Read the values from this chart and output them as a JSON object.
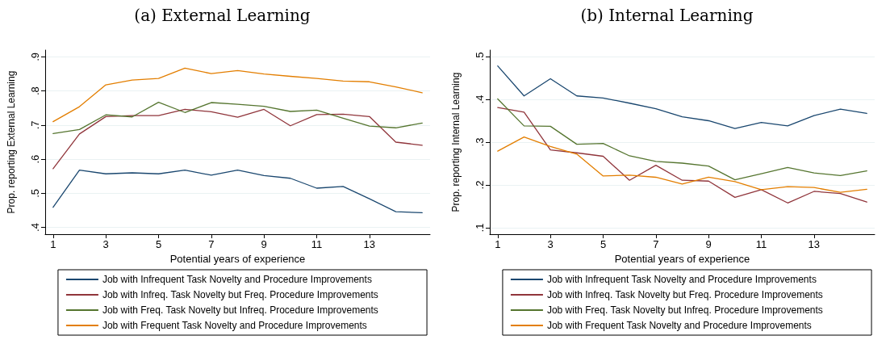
{
  "chart_data": [
    {
      "type": "line",
      "title": "(a) External Learning",
      "xlabel": "Potential years of experience",
      "ylabel": "Prop. reporting External Learning",
      "x": [
        1,
        2,
        3,
        4,
        5,
        6,
        7,
        8,
        9,
        10,
        11,
        12,
        13,
        14,
        15
      ],
      "series": [
        {
          "name": "Job with Infrequent Task Novelty and Procedure Improvements",
          "color": "#1a476f",
          "values": [
            0.459,
            0.568,
            0.557,
            0.56,
            0.557,
            0.568,
            0.553,
            0.568,
            0.552,
            0.544,
            0.515,
            0.52,
            0.484,
            0.446,
            0.443
          ]
        },
        {
          "name": "Job with Infreq. Task Novelty but Freq. Procedure Improvements",
          "color": "#90353b",
          "values": [
            0.572,
            0.674,
            0.725,
            0.728,
            0.728,
            0.746,
            0.739,
            0.723,
            0.746,
            0.698,
            0.731,
            0.732,
            0.725,
            0.65,
            0.641
          ]
        },
        {
          "name": "Job with Freq. Task Novelty but Infreq. Procedure Improvements",
          "color": "#55752f",
          "values": [
            0.675,
            0.687,
            0.73,
            0.724,
            0.767,
            0.737,
            0.766,
            0.761,
            0.755,
            0.74,
            0.744,
            0.72,
            0.697,
            0.692,
            0.706
          ]
        },
        {
          "name": "Job with Frequent Task Novelty and Procedure Improvements",
          "color": "#e37e00",
          "values": [
            0.71,
            0.754,
            0.818,
            0.832,
            0.837,
            0.867,
            0.851,
            0.86,
            0.85,
            0.843,
            0.837,
            0.829,
            0.827,
            0.812,
            0.795
          ]
        }
      ],
      "xlim": [
        0.7,
        15.3
      ],
      "xticks": [
        1,
        3,
        5,
        7,
        9,
        11,
        13
      ],
      "ylim": [
        0.38,
        0.92
      ],
      "yticks": [
        {
          "value": 0.4,
          "label": ".4"
        },
        {
          "value": 0.5,
          "label": ".5"
        },
        {
          "value": 0.6,
          "label": ".6"
        },
        {
          "value": 0.7,
          "label": ".7"
        },
        {
          "value": 0.8,
          "label": ".8"
        },
        {
          "value": 0.9,
          "label": ".9"
        }
      ],
      "grid": "y",
      "legend": "bottom",
      "marker": "none",
      "line_style": "solid"
    },
    {
      "type": "line",
      "title": "(b) Internal Learning",
      "xlabel": "Potential years of experience",
      "ylabel": "Prop. reporting Internal Learning",
      "x": [
        1,
        2,
        3,
        4,
        5,
        6,
        7,
        8,
        9,
        10,
        11,
        12,
        13,
        14,
        15
      ],
      "series": [
        {
          "name": "Job with Infrequent Task Novelty and Procedure Improvements",
          "color": "#1a476f",
          "values": [
            0.478,
            0.408,
            0.448,
            0.408,
            0.403,
            0.391,
            0.378,
            0.359,
            0.35,
            0.332,
            0.346,
            0.338,
            0.362,
            0.377,
            0.367
          ]
        },
        {
          "name": "Job with Infreq. Task Novelty but Freq. Procedure Improvements",
          "color": "#90353b",
          "values": [
            0.381,
            0.37,
            0.282,
            0.275,
            0.267,
            0.211,
            0.246,
            0.211,
            0.209,
            0.171,
            0.189,
            0.158,
            0.185,
            0.18,
            0.16
          ]
        },
        {
          "name": "Job with Freq. Task Novelty but Infreq. Procedure Improvements",
          "color": "#55752f",
          "values": [
            0.401,
            0.338,
            0.337,
            0.295,
            0.297,
            0.268,
            0.255,
            0.251,
            0.244,
            0.212,
            0.226,
            0.241,
            0.228,
            0.222,
            0.233
          ]
        },
        {
          "name": "Job with Frequent Task Novelty and Procedure Improvements",
          "color": "#e37e00",
          "values": [
            0.279,
            0.312,
            0.29,
            0.272,
            0.221,
            0.223,
            0.218,
            0.202,
            0.218,
            0.208,
            0.189,
            0.196,
            0.194,
            0.183,
            0.19
          ]
        }
      ],
      "xlim": [
        0.7,
        15.3
      ],
      "xticks": [
        1,
        3,
        5,
        7,
        9,
        11,
        13
      ],
      "ylim": [
        0.085,
        0.515
      ],
      "yticks": [
        {
          "value": 0.1,
          "label": ".1"
        },
        {
          "value": 0.2,
          "label": ".2"
        },
        {
          "value": 0.3,
          "label": ".3"
        },
        {
          "value": 0.4,
          "label": ".4"
        },
        {
          "value": 0.5,
          "label": ".5"
        }
      ],
      "grid": "y",
      "legend": "bottom",
      "marker": "none",
      "line_style": "solid"
    }
  ]
}
